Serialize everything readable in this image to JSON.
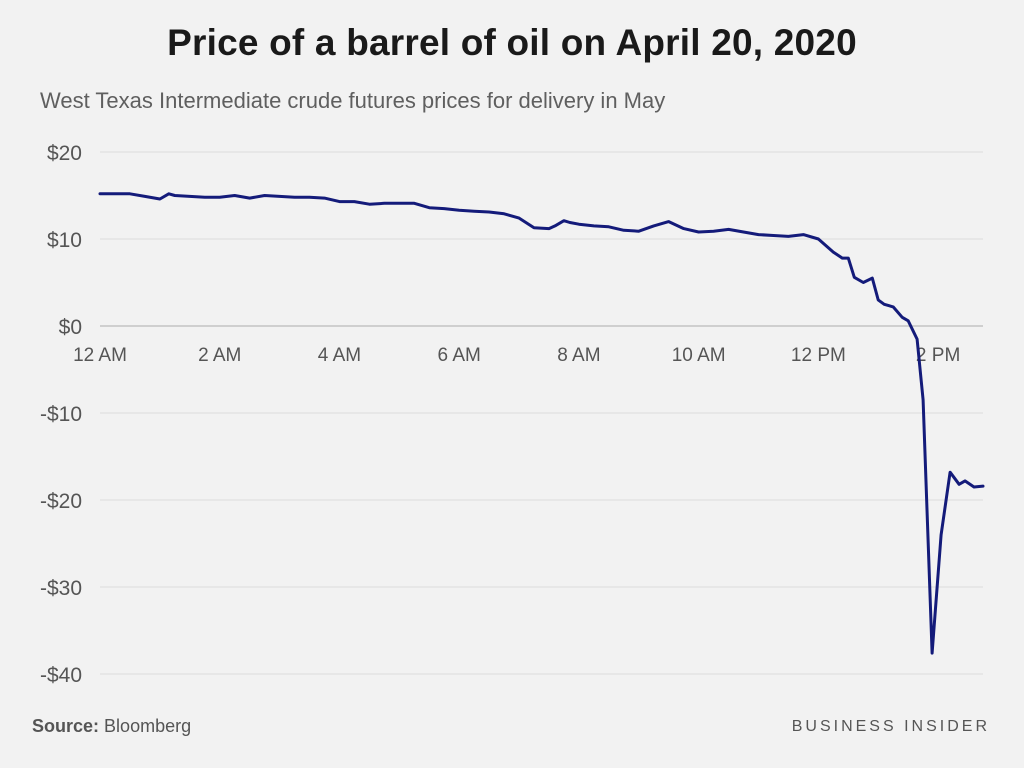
{
  "header": {
    "title": "Price of a barrel of oil on April 20, 2020",
    "subtitle": "West Texas Intermediate crude futures prices for delivery in May"
  },
  "footer": {
    "source_label": "Source:",
    "source_value": "Bloomberg",
    "brand": "BUSINESS INSIDER"
  },
  "colors": {
    "line": "#141b7a",
    "grid": "#dcdcdc",
    "zero_line": "#cfcfcf",
    "background": "#f2f2f2"
  },
  "chart_data": {
    "type": "line",
    "title": "Price of a barrel of oil on April 20, 2020",
    "subtitle": "West Texas Intermediate crude futures prices for delivery in May",
    "xlabel": "",
    "ylabel": "",
    "x_unit": "hours since midnight",
    "xlim": [
      0,
      14.75
    ],
    "ylim": [
      -40,
      20
    ],
    "yticks": [
      20,
      10,
      0,
      -10,
      -20,
      -30,
      -40
    ],
    "ytick_labels": [
      "$20",
      "$10",
      "$0",
      "-$10",
      "-$20",
      "-$30",
      "-$40"
    ],
    "xticks": [
      0,
      2,
      4,
      6,
      8,
      10,
      12,
      14
    ],
    "xtick_labels": [
      "12 AM",
      "2 AM",
      "4 AM",
      "6 AM",
      "8 AM",
      "10 AM",
      "12 PM",
      "2 PM"
    ],
    "grid": true,
    "legend": "none",
    "series": [
      {
        "color": "#141b7a",
        "x": [
          0,
          0.5,
          0.75,
          1.0,
          1.15,
          1.25,
          1.5,
          1.75,
          2.0,
          2.25,
          2.5,
          2.75,
          3.0,
          3.25,
          3.5,
          3.75,
          4.0,
          4.25,
          4.5,
          4.75,
          5.0,
          5.25,
          5.5,
          5.75,
          6.0,
          6.25,
          6.5,
          6.75,
          7.0,
          7.25,
          7.5,
          7.6,
          7.75,
          7.85,
          8.0,
          8.25,
          8.5,
          8.75,
          9.0,
          9.25,
          9.5,
          9.75,
          10.0,
          10.25,
          10.5,
          10.75,
          11.0,
          11.25,
          11.5,
          11.75,
          12.0,
          12.25,
          12.4,
          12.5,
          12.6,
          12.75,
          12.9,
          13.0,
          13.1,
          13.25,
          13.4,
          13.5,
          13.65,
          13.75,
          13.9,
          14.05,
          14.2,
          14.35,
          14.45,
          14.6,
          14.75
        ],
        "y": [
          15.2,
          15.2,
          14.9,
          14.6,
          15.2,
          15.0,
          14.9,
          14.8,
          14.8,
          15.0,
          14.7,
          15.0,
          14.9,
          14.8,
          14.8,
          14.7,
          14.3,
          14.3,
          14.0,
          14.1,
          14.1,
          14.1,
          13.6,
          13.5,
          13.3,
          13.2,
          13.1,
          12.9,
          12.4,
          11.3,
          11.2,
          11.5,
          12.1,
          11.9,
          11.7,
          11.5,
          11.4,
          11.0,
          10.9,
          11.5,
          12.0,
          11.2,
          10.8,
          10.9,
          11.1,
          10.8,
          10.5,
          10.4,
          10.3,
          10.5,
          10.0,
          8.5,
          7.8,
          7.8,
          5.6,
          5.0,
          5.5,
          3.0,
          2.5,
          2.2,
          1.0,
          0.6,
          -1.5,
          -8.5,
          -37.6,
          -24.0,
          -16.8,
          -18.2,
          -17.8,
          -18.5,
          -18.4
        ]
      }
    ]
  }
}
